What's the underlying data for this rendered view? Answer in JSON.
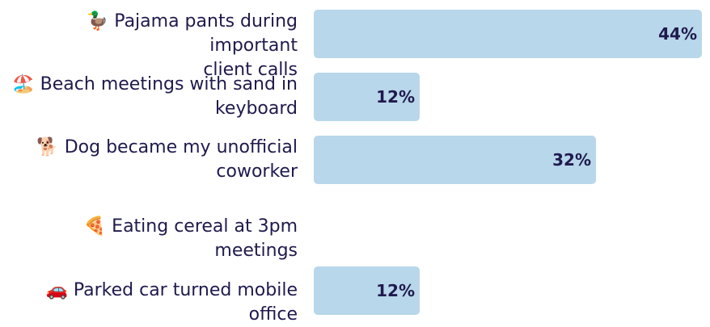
{
  "chart_data": {
    "type": "bar",
    "orientation": "horizontal",
    "categories": [
      "🦆 Pajama pants during important client calls",
      "🏖️ Beach meetings with sand in keyboard",
      "🐕 Dog became my unofficial coworker",
      "🍕 Eating cereal at 3pm meetings",
      "🚗 Parked car turned mobile office"
    ],
    "label_lines": [
      [
        "🦆 Pajama pants during important",
        "client calls"
      ],
      [
        "🏖️ Beach meetings with sand in",
        "keyboard"
      ],
      [
        "🐕 Dog became my unofficial",
        "coworker"
      ],
      [
        "🍕 Eating cereal at 3pm meetings"
      ],
      [
        "🚗 Parked car turned mobile office"
      ]
    ],
    "values": [
      44,
      12,
      32,
      0,
      12
    ],
    "value_labels": [
      "44%",
      "12%",
      "32%",
      "",
      "12%"
    ],
    "xlim": [
      0,
      44
    ],
    "bar_color": "#b8d7ea",
    "text_color": "#1f1a4d"
  }
}
